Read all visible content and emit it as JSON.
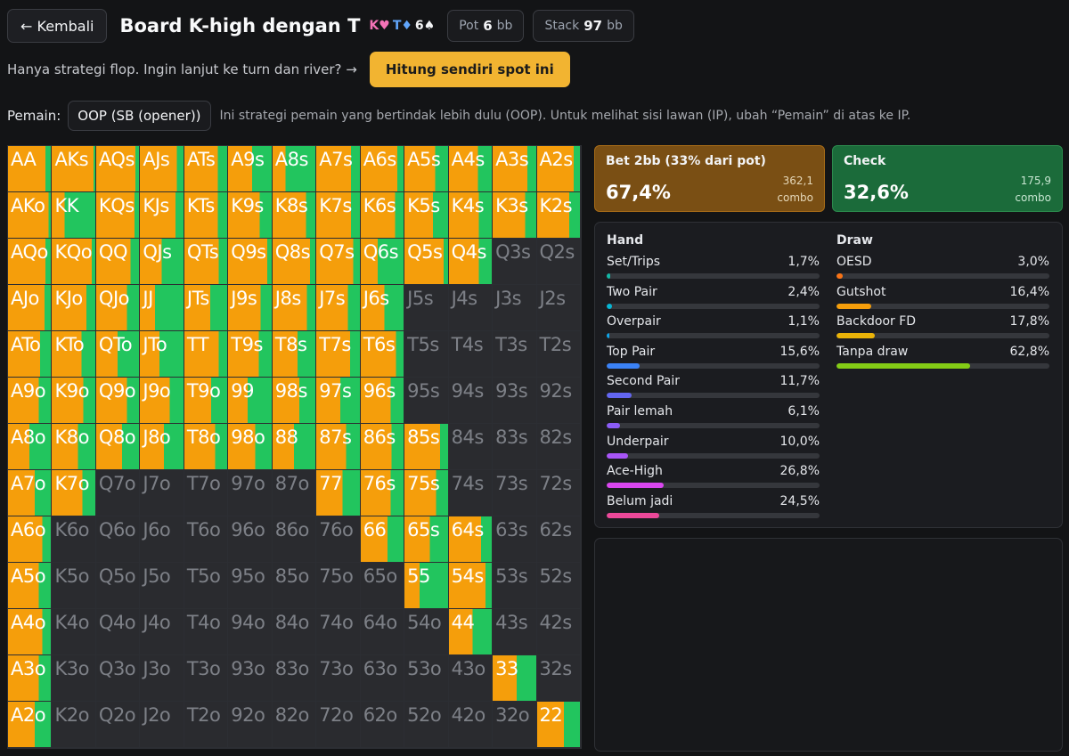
{
  "header": {
    "back_label": "← Kembali",
    "title": "Board K-high dengan T",
    "board_cards": [
      {
        "label": "K♥",
        "color": "red"
      },
      {
        "label": "T♦",
        "color": "blue"
      },
      {
        "label": "6♠",
        "color": "white"
      }
    ],
    "pot": {
      "label": "Pot",
      "value": "6",
      "unit": "bb"
    },
    "stack": {
      "label": "Stack",
      "value": "97",
      "unit": "bb"
    }
  },
  "notice": {
    "text": "Hanya strategi flop. Ingin lanjut ke turn dan river? →",
    "cta_label": "Hitung sendiri spot ini"
  },
  "player": {
    "label": "Pemain:",
    "selected": "OOP (SB (opener))",
    "note": "Ini strategi pemain yang bertindak lebih dulu (OOP). Untuk melihat sisi lawan (IP), ubah “Pemain” di atas ke IP."
  },
  "colors": {
    "bet": "#f59e0b",
    "check": "#22c55e",
    "inactive": "#2a2b2f"
  },
  "matrix": [
    [
      {
        "h": "AA",
        "b": 0.88
      },
      {
        "h": "AKs",
        "b": 0.96
      },
      {
        "h": "AQs",
        "b": 0.92
      },
      {
        "h": "AJs",
        "b": 0.85
      },
      {
        "h": "ATs",
        "b": 0.78
      },
      {
        "h": "A9s",
        "b": 0.55
      },
      {
        "h": "A8s",
        "b": 0.3
      },
      {
        "h": "A7s",
        "b": 0.8
      },
      {
        "h": "A6s",
        "b": 0.85
      },
      {
        "h": "A5s",
        "b": 0.7
      },
      {
        "h": "A4s",
        "b": 0.68
      },
      {
        "h": "A3s",
        "b": 0.8
      },
      {
        "h": "A2s",
        "b": 0.85
      }
    ],
    [
      {
        "h": "AKo",
        "b": 0.95
      },
      {
        "h": "KK",
        "b": 0.3
      },
      {
        "h": "KQs",
        "b": 0.9
      },
      {
        "h": "KJs",
        "b": 0.82
      },
      {
        "h": "KTs",
        "b": 0.78
      },
      {
        "h": "K9s",
        "b": 0.72
      },
      {
        "h": "K8s",
        "b": 0.78
      },
      {
        "h": "K7s",
        "b": 0.8
      },
      {
        "h": "K6s",
        "b": 0.8
      },
      {
        "h": "K5s",
        "b": 0.65
      },
      {
        "h": "K4s",
        "b": 0.7
      },
      {
        "h": "K3s",
        "b": 0.75
      },
      {
        "h": "K2s",
        "b": 0.75
      }
    ],
    [
      {
        "h": "AQo",
        "b": 0.88
      },
      {
        "h": "KQo",
        "b": 0.92
      },
      {
        "h": "QQ",
        "b": 0.8
      },
      {
        "h": "QJs",
        "b": 0.5
      },
      {
        "h": "QTs",
        "b": 0.8
      },
      {
        "h": "Q9s",
        "b": 0.9
      },
      {
        "h": "Q8s",
        "b": 0.88
      },
      {
        "h": "Q7s",
        "b": 0.85
      },
      {
        "h": "Q6s",
        "b": 0.4
      },
      {
        "h": "Q5s",
        "b": 0.9
      },
      {
        "h": "Q4s",
        "b": 0.7
      },
      {
        "h": "Q3s",
        "b": null
      },
      {
        "h": "Q2s",
        "b": null
      }
    ],
    [
      {
        "h": "AJo",
        "b": 0.85
      },
      {
        "h": "KJo",
        "b": 0.8
      },
      {
        "h": "QJo",
        "b": 0.72
      },
      {
        "h": "JJ",
        "b": 0.35
      },
      {
        "h": "JTs",
        "b": 0.6
      },
      {
        "h": "J9s",
        "b": 0.75
      },
      {
        "h": "J8s",
        "b": 0.8
      },
      {
        "h": "J7s",
        "b": 0.72
      },
      {
        "h": "J6s",
        "b": 0.55
      },
      {
        "h": "J5s",
        "b": null
      },
      {
        "h": "J4s",
        "b": null
      },
      {
        "h": "J3s",
        "b": null
      },
      {
        "h": "J2s",
        "b": null
      }
    ],
    [
      {
        "h": "ATo",
        "b": 0.75
      },
      {
        "h": "KTo",
        "b": 0.68
      },
      {
        "h": "QTo",
        "b": 0.5
      },
      {
        "h": "JTo",
        "b": 0.45
      },
      {
        "h": "TT",
        "b": 0.8
      },
      {
        "h": "T9s",
        "b": 0.7
      },
      {
        "h": "T8s",
        "b": 0.58
      },
      {
        "h": "T7s",
        "b": 0.78
      },
      {
        "h": "T6s",
        "b": 0.82
      },
      {
        "h": "T5s",
        "b": null
      },
      {
        "h": "T4s",
        "b": null
      },
      {
        "h": "T3s",
        "b": null
      },
      {
        "h": "T2s",
        "b": null
      }
    ],
    [
      {
        "h": "A9o",
        "b": 0.72
      },
      {
        "h": "K9o",
        "b": 0.72
      },
      {
        "h": "Q9o",
        "b": 0.72
      },
      {
        "h": "J9o",
        "b": 0.68
      },
      {
        "h": "T9o",
        "b": 0.62
      },
      {
        "h": "99",
        "b": 0.45
      },
      {
        "h": "98s",
        "b": 0.62
      },
      {
        "h": "97s",
        "b": 0.55
      },
      {
        "h": "96s",
        "b": 0.7
      },
      {
        "h": "95s",
        "b": null
      },
      {
        "h": "94s",
        "b": null
      },
      {
        "h": "93s",
        "b": null
      },
      {
        "h": "92s",
        "b": null
      }
    ],
    [
      {
        "h": "A8o",
        "b": 0.5
      },
      {
        "h": "K8o",
        "b": 0.6
      },
      {
        "h": "Q8o",
        "b": 0.6
      },
      {
        "h": "J8o",
        "b": 0.55
      },
      {
        "h": "T8o",
        "b": 0.72
      },
      {
        "h": "98o",
        "b": 0.62
      },
      {
        "h": "88",
        "b": 0.5
      },
      {
        "h": "87s",
        "b": 0.68
      },
      {
        "h": "86s",
        "b": 0.72
      },
      {
        "h": "85s",
        "b": 0.82
      },
      {
        "h": "84s",
        "b": null
      },
      {
        "h": "83s",
        "b": null
      },
      {
        "h": "82s",
        "b": null
      }
    ],
    [
      {
        "h": "A7o",
        "b": 0.62
      },
      {
        "h": "K7o",
        "b": 0.7
      },
      {
        "h": "Q7o",
        "b": null
      },
      {
        "h": "J7o",
        "b": null
      },
      {
        "h": "T7o",
        "b": null
      },
      {
        "h": "97o",
        "b": null
      },
      {
        "h": "87o",
        "b": null
      },
      {
        "h": "77",
        "b": 0.6
      },
      {
        "h": "76s",
        "b": 0.7
      },
      {
        "h": "75s",
        "b": 0.72
      },
      {
        "h": "74s",
        "b": null
      },
      {
        "h": "73s",
        "b": null
      },
      {
        "h": "72s",
        "b": null
      }
    ],
    [
      {
        "h": "A6o",
        "b": 0.8
      },
      {
        "h": "K6o",
        "b": null
      },
      {
        "h": "Q6o",
        "b": null
      },
      {
        "h": "J6o",
        "b": null
      },
      {
        "h": "T6o",
        "b": null
      },
      {
        "h": "96o",
        "b": null
      },
      {
        "h": "86o",
        "b": null
      },
      {
        "h": "76o",
        "b": null
      },
      {
        "h": "66",
        "b": 0.62
      },
      {
        "h": "65s",
        "b": 0.58
      },
      {
        "h": "64s",
        "b": 0.75
      },
      {
        "h": "63s",
        "b": null
      },
      {
        "h": "62s",
        "b": null
      }
    ],
    [
      {
        "h": "A5o",
        "b": 0.72
      },
      {
        "h": "K5o",
        "b": null
      },
      {
        "h": "Q5o",
        "b": null
      },
      {
        "h": "J5o",
        "b": null
      },
      {
        "h": "T5o",
        "b": null
      },
      {
        "h": "95o",
        "b": null
      },
      {
        "h": "85o",
        "b": null
      },
      {
        "h": "75o",
        "b": null
      },
      {
        "h": "65o",
        "b": null
      },
      {
        "h": "55",
        "b": 0.35
      },
      {
        "h": "54s",
        "b": 0.85
      },
      {
        "h": "53s",
        "b": null
      },
      {
        "h": "52s",
        "b": null
      }
    ],
    [
      {
        "h": "A4o",
        "b": 0.8
      },
      {
        "h": "K4o",
        "b": null
      },
      {
        "h": "Q4o",
        "b": null
      },
      {
        "h": "J4o",
        "b": null
      },
      {
        "h": "T4o",
        "b": null
      },
      {
        "h": "94o",
        "b": null
      },
      {
        "h": "84o",
        "b": null
      },
      {
        "h": "74o",
        "b": null
      },
      {
        "h": "64o",
        "b": null
      },
      {
        "h": "54o",
        "b": null
      },
      {
        "h": "44",
        "b": 0.55
      },
      {
        "h": "43s",
        "b": null
      },
      {
        "h": "42s",
        "b": null
      }
    ],
    [
      {
        "h": "A3o",
        "b": 0.72
      },
      {
        "h": "K3o",
        "b": null
      },
      {
        "h": "Q3o",
        "b": null
      },
      {
        "h": "J3o",
        "b": null
      },
      {
        "h": "T3o",
        "b": null
      },
      {
        "h": "93o",
        "b": null
      },
      {
        "h": "83o",
        "b": null
      },
      {
        "h": "73o",
        "b": null
      },
      {
        "h": "63o",
        "b": null
      },
      {
        "h": "53o",
        "b": null
      },
      {
        "h": "43o",
        "b": null
      },
      {
        "h": "33",
        "b": 0.55
      },
      {
        "h": "32s",
        "b": null
      }
    ],
    [
      {
        "h": "A2o",
        "b": 0.62
      },
      {
        "h": "K2o",
        "b": null
      },
      {
        "h": "Q2o",
        "b": null
      },
      {
        "h": "J2o",
        "b": null
      },
      {
        "h": "T2o",
        "b": null
      },
      {
        "h": "92o",
        "b": null
      },
      {
        "h": "82o",
        "b": null
      },
      {
        "h": "72o",
        "b": null
      },
      {
        "h": "62o",
        "b": null
      },
      {
        "h": "52o",
        "b": null
      },
      {
        "h": "42o",
        "b": null
      },
      {
        "h": "32o",
        "b": null
      },
      {
        "h": "22",
        "b": 0.62
      }
    ]
  ],
  "actions": {
    "bet": {
      "label": "Bet 2bb (33% dari pot)",
      "pct": "67,4%",
      "combo": "362,1",
      "combo_unit": "combo"
    },
    "check": {
      "label": "Check",
      "pct": "32,6%",
      "combo": "175,9",
      "combo_unit": "combo"
    }
  },
  "breakdown": {
    "hand": {
      "title": "Hand",
      "items": [
        {
          "label": "Set/Trips",
          "value": "1,7%",
          "pct": 1.7,
          "color": "#14b8a6"
        },
        {
          "label": "Two Pair",
          "value": "2,4%",
          "pct": 2.4,
          "color": "#06b6d4"
        },
        {
          "label": "Overpair",
          "value": "1,1%",
          "pct": 1.1,
          "color": "#0ea5e9"
        },
        {
          "label": "Top Pair",
          "value": "15,6%",
          "pct": 15.6,
          "color": "#3b82f6"
        },
        {
          "label": "Second Pair",
          "value": "11,7%",
          "pct": 11.7,
          "color": "#6366f1"
        },
        {
          "label": "Pair lemah",
          "value": "6,1%",
          "pct": 6.1,
          "color": "#8b5cf6"
        },
        {
          "label": "Underpair",
          "value": "10,0%",
          "pct": 10.0,
          "color": "#a855f7"
        },
        {
          "label": "Ace-High",
          "value": "26,8%",
          "pct": 26.8,
          "color": "#d946ef"
        },
        {
          "label": "Belum jadi",
          "value": "24,5%",
          "pct": 24.5,
          "color": "#ec4899"
        }
      ]
    },
    "draw": {
      "title": "Draw",
      "items": [
        {
          "label": "OESD",
          "value": "3,0%",
          "pct": 3.0,
          "color": "#f97316"
        },
        {
          "label": "Gutshot",
          "value": "16,4%",
          "pct": 16.4,
          "color": "#f59e0b"
        },
        {
          "label": "Backdoor FD",
          "value": "17,8%",
          "pct": 17.8,
          "color": "#eab308"
        },
        {
          "label": "Tanpa draw",
          "value": "62,8%",
          "pct": 62.8,
          "color": "#84cc16"
        }
      ]
    }
  }
}
